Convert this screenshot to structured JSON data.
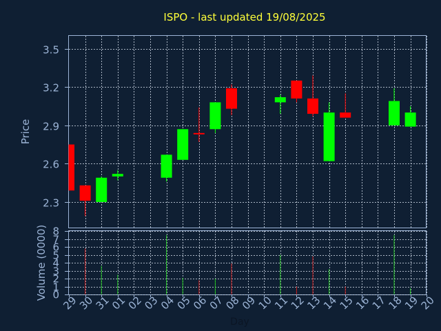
{
  "chart_data": {
    "type": "candlestick",
    "title": "ISPO - last updated 19/08/2025",
    "xlabel": "Day",
    "price_panel": {
      "ylabel": "Price",
      "ylim": [
        2.1,
        3.6
      ],
      "yticks": [
        "2.3",
        "2.6",
        "2.9",
        "3.2",
        "3.5"
      ]
    },
    "volume_panel": {
      "ylabel": "Volume (0000)",
      "ylim": [
        0,
        8
      ],
      "yticks": [
        "0",
        "1",
        "2",
        "3",
        "4",
        "5",
        "6",
        "7",
        "8"
      ]
    },
    "x_ticks": [
      "29",
      "30",
      "31",
      "01",
      "02",
      "03",
      "04",
      "05",
      "06",
      "07",
      "08",
      "09",
      "10",
      "11",
      "12",
      "13",
      "14",
      "15",
      "16",
      "17",
      "18",
      "19",
      "20"
    ],
    "candles": [
      {
        "day": "29",
        "open": 2.75,
        "high": 2.75,
        "low": 2.39,
        "close": 2.39,
        "volume": 0
      },
      {
        "day": "30",
        "open": 2.43,
        "high": 2.43,
        "low": 2.19,
        "close": 2.31,
        "volume": 5.8
      },
      {
        "day": "31",
        "open": 2.3,
        "high": 2.5,
        "low": 2.3,
        "close": 2.49,
        "volume": 3.6
      },
      {
        "day": "01",
        "open": 2.5,
        "high": 2.55,
        "low": 2.47,
        "close": 2.52,
        "volume": 2.5
      },
      {
        "day": "04",
        "open": 2.49,
        "high": 2.67,
        "low": 2.46,
        "close": 2.67,
        "volume": 7.5
      },
      {
        "day": "05",
        "open": 2.63,
        "high": 2.87,
        "low": 2.63,
        "close": 2.87,
        "volume": 2.1
      },
      {
        "day": "06",
        "open": 2.84,
        "high": 3.04,
        "low": 2.77,
        "close": 2.83,
        "volume": 1.8
      },
      {
        "day": "07",
        "open": 2.87,
        "high": 3.08,
        "low": 2.84,
        "close": 3.08,
        "volume": 2.0
      },
      {
        "day": "08",
        "open": 3.19,
        "high": 3.22,
        "low": 2.98,
        "close": 3.03,
        "volume": 3.9
      },
      {
        "day": "11",
        "open": 3.08,
        "high": 3.14,
        "low": 2.99,
        "close": 3.12,
        "volume": 5.0
      },
      {
        "day": "12",
        "open": 3.25,
        "high": 3.25,
        "low": 3.08,
        "close": 3.11,
        "volume": 1.0
      },
      {
        "day": "13",
        "open": 3.11,
        "high": 3.29,
        "low": 2.97,
        "close": 2.99,
        "volume": 4.8
      },
      {
        "day": "14",
        "open": 2.62,
        "high": 3.08,
        "low": 2.62,
        "close": 3.0,
        "volume": 3.2
      },
      {
        "day": "15",
        "open": 3.0,
        "high": 3.15,
        "low": 2.96,
        "close": 2.96,
        "volume": 1.0
      },
      {
        "day": "18",
        "open": 2.9,
        "high": 3.19,
        "low": 2.9,
        "close": 3.09,
        "volume": 7.5
      },
      {
        "day": "19",
        "open": 2.89,
        "high": 3.05,
        "low": 2.89,
        "close": 3.0,
        "volume": 0.8
      }
    ]
  },
  "colors": {
    "background": "#0f1f33",
    "up": "#00ff00",
    "down": "#ff0000",
    "grid": "#c8d2e0",
    "axis_text": "#9cb4d6",
    "title": "#ffff3a",
    "plot_border": "#9cb4d6",
    "volume_up": "#1fbf1f",
    "volume_down": "#c01818"
  }
}
